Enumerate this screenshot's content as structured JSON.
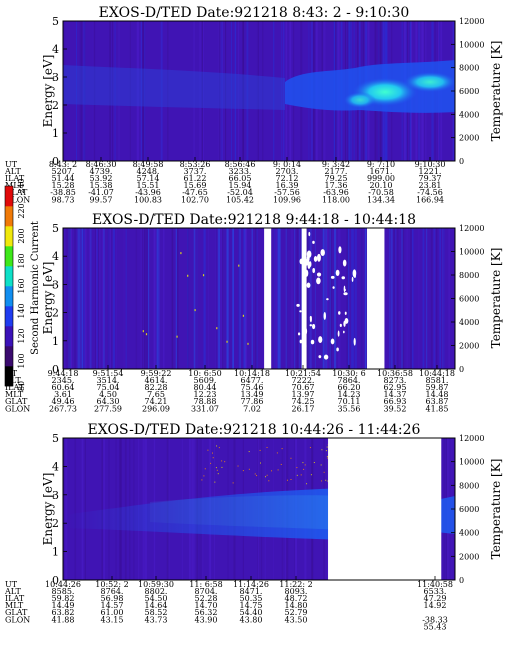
{
  "chart_data": [
    {
      "type": "heatmap",
      "title": "EXOS-D/TED   Date:921218   8:43: 2 - 9:10:30",
      "ylabel": "Energy [eV]",
      "ylabel_right": "Temperature [K]",
      "ylim": [
        0,
        5
      ],
      "yticks": [
        "0",
        "1",
        "2",
        "3",
        "4",
        "5"
      ],
      "ylim_right": [
        0,
        12000
      ],
      "yticks_right": [
        "0",
        "2000",
        "4000",
        "6000",
        "8000",
        "10000",
        "12000"
      ],
      "row_labels": [
        "UT",
        "ALT",
        "ILAT",
        "MLT",
        "GLAT",
        "GLON"
      ],
      "columns": [
        [
          "8:43: 2",
          "5207.",
          "51.44",
          "15.28",
          "-38.85",
          "98.73"
        ],
        [
          "8:46:30",
          "4739.",
          "53.92",
          "15.38",
          "-41.07",
          "99.57"
        ],
        [
          "8:49:58",
          "4248.",
          "57.14",
          "15.51",
          "-43.96",
          "100.83"
        ],
        [
          "8:53:26",
          "3737.",
          "61.22",
          "15.69",
          "-47.65",
          "102.70"
        ],
        [
          "8:56:46",
          "3233.",
          "66.05",
          "15.94",
          "-52.04",
          "105.42"
        ],
        [
          "9: 0:14",
          "2703.",
          "72.12",
          "16.39",
          "-57.56",
          "109.96"
        ],
        [
          "9: 3:42",
          "2177.",
          "79.25",
          "17.36",
          "-63.96",
          "118.00"
        ],
        [
          "9: 7:10",
          "1671.",
          "999.00",
          "20.10",
          "-70.58",
          "134.34"
        ],
        [
          "9:10:30",
          "1221.",
          "79.37",
          "23.81",
          "-74.56",
          "166.94"
        ]
      ],
      "data_gaps": []
    },
    {
      "type": "heatmap",
      "title": "EXOS-D/TED   Date:921218   9:44:18 - 10:44:18",
      "ylabel": "Energy [eV]",
      "ylabel_right": "Temperature [K]",
      "ylim": [
        0,
        5
      ],
      "yticks": [
        "0",
        "1",
        "2",
        "3",
        "4",
        "5"
      ],
      "ylim_right": [
        0,
        12000
      ],
      "yticks_right": [
        "0",
        "2000",
        "4000",
        "6000",
        "8000",
        "10000",
        "12000"
      ],
      "row_labels": [
        "UT",
        "ALT",
        "ILAT",
        "MLT",
        "GLAT",
        "GLON"
      ],
      "columns": [
        [
          "9:44:18",
          "2345.",
          "60.64",
          "3.61",
          "49.46",
          "267.73"
        ],
        [
          "9:51:54",
          "3514.",
          "75.04",
          "4.50",
          "64.30",
          "277.59"
        ],
        [
          "9:59:22",
          "4614.",
          "82.28",
          "7.65",
          "74.21",
          "296.09"
        ],
        [
          "10: 6:50",
          "5609.",
          "80.44",
          "12.23",
          "78.88",
          "331.07"
        ],
        [
          "10:14:18",
          "6477.",
          "75.46",
          "13.49",
          "77.86",
          "7.02"
        ],
        [
          "10:21:54",
          "7222.",
          "70.67",
          "13.97",
          "74.25",
          "26.17"
        ],
        [
          "10:30: 6",
          "7864.",
          "66.20",
          "14.23",
          "70.11",
          "35.56"
        ],
        [
          "10:36:58",
          "8273.",
          "62.95",
          "14.37",
          "66.93",
          "39.52"
        ],
        [
          "10:44:18",
          "8581.",
          "59.87",
          "14.48",
          "63.87",
          "41.85"
        ]
      ],
      "data_gaps": [
        [
          "10:15:05",
          "10:16:10"
        ],
        [
          "10:20:50",
          "10:21:35"
        ],
        [
          "10:30:50",
          "10:33:30"
        ]
      ]
    },
    {
      "type": "heatmap",
      "title": "EXOS-D/TED   Date:921218   10:44:26 - 11:44:26",
      "ylabel": "Energy [eV]",
      "ylabel_right": "Temperature [K]",
      "ylim": [
        0,
        5
      ],
      "yticks": [
        "0",
        "1",
        "2",
        "3",
        "4",
        "5"
      ],
      "ylim_right": [
        0,
        12000
      ],
      "yticks_right": [
        "0",
        "2000",
        "4000",
        "6000",
        "8000",
        "10000",
        "12000"
      ],
      "row_labels": [
        "UT",
        "ALT",
        "ILAT",
        "MLT",
        "GLAT",
        "GLON"
      ],
      "columns": [
        [
          "10:44:26",
          "8585.",
          "59.82",
          "14.49",
          "63.82",
          "41.88"
        ],
        [
          "10:52: 2",
          "8764.",
          "56.98",
          "14.57",
          "61.00",
          "43.15"
        ],
        [
          "10:59:30",
          "8802.",
          "54.50",
          "14.64",
          "58.52",
          "43.73"
        ],
        [
          "11: 6:58",
          "8704.",
          "52.28",
          "14.70",
          "56.32",
          "43.90"
        ],
        [
          "11:14:26",
          "8471.",
          "50.35",
          "14.75",
          "54.40",
          "43.80"
        ],
        [
          "11:22: 2",
          "8093.",
          "48.72",
          "14.80",
          "52.79",
          "43.50"
        ],
        [
          "11:40:58",
          "6533.",
          "47.29",
          "14.92",
          "",
          "-38.33"
        ]
      ],
      "extra_column": [
        "",
        "",
        "",
        "",
        "",
        "55.43"
      ],
      "data_gaps": [
        [
          "11:25:00",
          "11:42:20"
        ]
      ]
    }
  ],
  "colorbar": {
    "label": "Second Harmonic Current",
    "range": [
      80,
      240
    ],
    "ticks": [
      "80",
      "100",
      "120",
      "140",
      "160",
      "180",
      "200",
      "220",
      "240"
    ],
    "colors": [
      "#000000",
      "#3a0a6e",
      "#3b12b8",
      "#1f3cf0",
      "#118ef0",
      "#0ee0c8",
      "#3ee81a",
      "#f0e80c",
      "#f07a08",
      "#e00a0a"
    ]
  },
  "colors": {
    "background": "#4014b4",
    "enhanced": "#1e54f0",
    "peak": "#20f0e0"
  }
}
